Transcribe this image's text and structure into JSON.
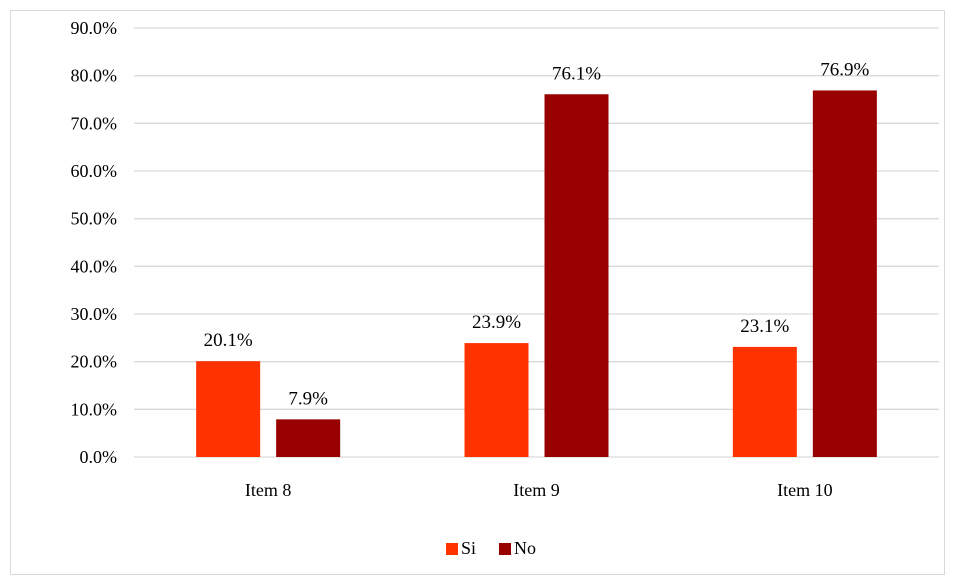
{
  "chart_data": {
    "type": "bar",
    "categories": [
      "Item 8",
      "Item 9",
      "Item 10"
    ],
    "series": [
      {
        "name": "Si",
        "values": [
          20.1,
          23.9,
          23.1
        ],
        "color": "#ff3300"
      },
      {
        "name": "No",
        "values": [
          7.9,
          76.1,
          76.9
        ],
        "color": "#990000"
      }
    ],
    "data_labels": [
      [
        "20.1%",
        "23.9%",
        "23.1%"
      ],
      [
        "7.9%",
        "76.1%",
        "76.9%"
      ]
    ],
    "yticks": [
      "0.0%",
      "10.0%",
      "20.0%",
      "30.0%",
      "40.0%",
      "50.0%",
      "60.0%",
      "70.0%",
      "80.0%",
      "90.0%"
    ],
    "ylim": [
      0,
      90
    ],
    "grid": true,
    "legend_position": "bottom",
    "gridline_color": "#d9d9d9"
  }
}
